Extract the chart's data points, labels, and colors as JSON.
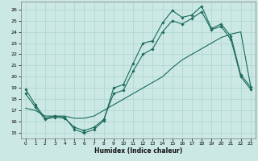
{
  "background_color": "#cce8e4",
  "grid_color": "#aad4cc",
  "line_color": "#1a6b5a",
  "xlabel": "Humidex (Indice chaleur)",
  "xlim": [
    -0.5,
    23.5
  ],
  "ylim": [
    14.5,
    26.7
  ],
  "xticks": [
    0,
    1,
    2,
    3,
    4,
    5,
    6,
    7,
    8,
    9,
    10,
    11,
    12,
    13,
    14,
    15,
    16,
    17,
    18,
    19,
    20,
    21,
    22,
    23
  ],
  "yticks": [
    15,
    16,
    17,
    18,
    19,
    20,
    21,
    22,
    23,
    24,
    25,
    26
  ],
  "series": [
    {
      "x": [
        0,
        1,
        2,
        3,
        4,
        5,
        6,
        7,
        8,
        9,
        10,
        11,
        12,
        13,
        14,
        15,
        16,
        17,
        18,
        19,
        20,
        21,
        22,
        23
      ],
      "y": [
        18.9,
        17.5,
        16.3,
        16.5,
        16.4,
        15.3,
        15.0,
        15.3,
        16.1,
        19.0,
        19.3,
        21.2,
        23.0,
        23.2,
        24.8,
        25.9,
        25.3,
        25.5,
        26.3,
        24.3,
        24.7,
        23.6,
        20.2,
        19.1
      ],
      "marker": true,
      "dashed": false
    },
    {
      "x": [
        0,
        1,
        2,
        3,
        4,
        5,
        6,
        7,
        8,
        9,
        10,
        11,
        12,
        13,
        14,
        15,
        16,
        17,
        18,
        19,
        20,
        21,
        22,
        23
      ],
      "y": [
        18.5,
        17.3,
        16.2,
        16.4,
        16.3,
        15.5,
        15.2,
        15.5,
        16.2,
        18.5,
        18.8,
        20.5,
        22.0,
        22.5,
        24.0,
        25.0,
        24.7,
        25.2,
        25.8,
        24.2,
        24.5,
        23.3,
        20.0,
        18.9
      ],
      "marker": true,
      "dashed": false
    },
    {
      "x": [
        0,
        1,
        2,
        3,
        4,
        5,
        6,
        7,
        8,
        9,
        10,
        11,
        12,
        13,
        14,
        15,
        16,
        17,
        18,
        19,
        20,
        21,
        22,
        23
      ],
      "y": [
        17.2,
        17.0,
        16.5,
        16.5,
        16.5,
        16.3,
        16.3,
        16.5,
        17.0,
        17.5,
        18.0,
        18.5,
        19.0,
        19.5,
        20.0,
        20.8,
        21.5,
        22.0,
        22.5,
        23.0,
        23.5,
        23.8,
        24.0,
        19.2
      ],
      "marker": false,
      "dashed": false
    }
  ]
}
